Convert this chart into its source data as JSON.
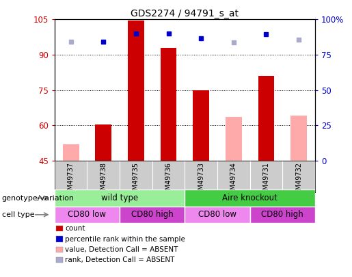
{
  "title": "GDS2274 / 94791_s_at",
  "samples": [
    "GSM49737",
    "GSM49738",
    "GSM49735",
    "GSM49736",
    "GSM49733",
    "GSM49734",
    "GSM49731",
    "GSM49732"
  ],
  "count_values": [
    null,
    60.5,
    104.5,
    93.0,
    75.0,
    null,
    81.0,
    null
  ],
  "count_absent": [
    52.0,
    null,
    null,
    null,
    null,
    63.5,
    null,
    64.0
  ],
  "rank_values": [
    null,
    84.0,
    90.0,
    90.0,
    86.5,
    null,
    89.5,
    null
  ],
  "rank_absent": [
    84.0,
    null,
    null,
    null,
    null,
    83.5,
    null,
    85.5
  ],
  "ylim_left": [
    45,
    105
  ],
  "ylim_right": [
    0,
    100
  ],
  "yticks_left": [
    45,
    60,
    75,
    90,
    105
  ],
  "yticks_right": [
    0,
    25,
    50,
    75,
    100
  ],
  "ytick_labels_right": [
    "0",
    "25",
    "50",
    "75",
    "100%"
  ],
  "bar_color": "#cc0000",
  "bar_absent_color": "#ffaaaa",
  "dot_color": "#0000cc",
  "dot_absent_color": "#aaaacc",
  "left_tick_color": "#cc0000",
  "right_tick_color": "#0000cc",
  "genotype_groups": [
    {
      "label": "wild type",
      "start": 0,
      "end": 4,
      "color": "#99ee99"
    },
    {
      "label": "Aire knockout",
      "start": 4,
      "end": 8,
      "color": "#44cc44"
    }
  ],
  "cell_type_groups": [
    {
      "label": "CD80 low",
      "start": 0,
      "end": 2,
      "color": "#ee88ee"
    },
    {
      "label": "CD80 high",
      "start": 2,
      "end": 4,
      "color": "#cc44cc"
    },
    {
      "label": "CD80 low",
      "start": 4,
      "end": 6,
      "color": "#ee88ee"
    },
    {
      "label": "CD80 high",
      "start": 6,
      "end": 8,
      "color": "#cc44cc"
    }
  ],
  "legend_items": [
    {
      "label": "count",
      "color": "#cc0000"
    },
    {
      "label": "percentile rank within the sample",
      "color": "#0000cc"
    },
    {
      "label": "value, Detection Call = ABSENT",
      "color": "#ffaaaa"
    },
    {
      "label": "rank, Detection Call = ABSENT",
      "color": "#aaaacc"
    }
  ],
  "genotype_label": "genotype/variation",
  "cell_type_label": "cell type",
  "bar_width": 0.5,
  "sample_label_bg": "#cccccc",
  "sample_divider_color": "#aaaaaa"
}
